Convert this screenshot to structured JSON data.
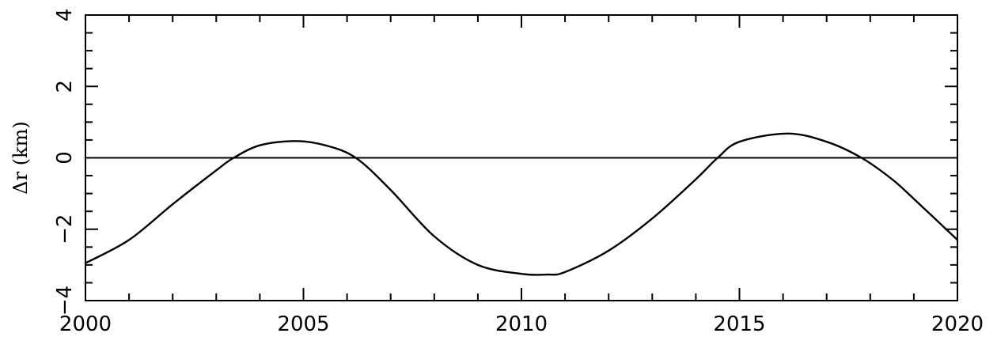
{
  "chart_data": {
    "type": "line",
    "title": "",
    "xlabel": "",
    "ylabel": "Δr (km)",
    "xlim": [
      2000,
      2020
    ],
    "ylim": [
      -4,
      4
    ],
    "x_ticks": [
      2000,
      2005,
      2010,
      2015,
      2020
    ],
    "x_tick_labels": [
      "2000",
      "2005",
      "2010",
      "2015",
      "2020"
    ],
    "x_minor_step": 1,
    "y_ticks": [
      -4,
      -2,
      0,
      2,
      4
    ],
    "y_tick_labels": [
      "−4",
      "−2",
      "0",
      "2",
      "4"
    ],
    "y_minor_step": 0.5,
    "reference_line": {
      "y": 0
    },
    "grid": false,
    "series": [
      {
        "x": [
          2000,
          2001,
          2002,
          2003,
          2003.4,
          2004,
          2004.8,
          2005.5,
          2006.2,
          2007,
          2008,
          2009,
          2010,
          2010.6,
          2011,
          2012,
          2013,
          2014,
          2014.5,
          2015,
          2016.1,
          2017,
          2017.8,
          2018.5,
          2019,
          2020
        ],
        "y": [
          -2.95,
          -2.3,
          -1.3,
          -0.35,
          0.0,
          0.35,
          0.47,
          0.35,
          0.0,
          -0.9,
          -2.2,
          -3.0,
          -3.25,
          -3.27,
          -3.2,
          -2.6,
          -1.7,
          -0.6,
          0.0,
          0.45,
          0.68,
          0.45,
          0.0,
          -0.6,
          -1.15,
          -2.3
        ]
      }
    ],
    "colors": {
      "line": "#000000",
      "axis": "#000000",
      "background": "#ffffff"
    }
  }
}
